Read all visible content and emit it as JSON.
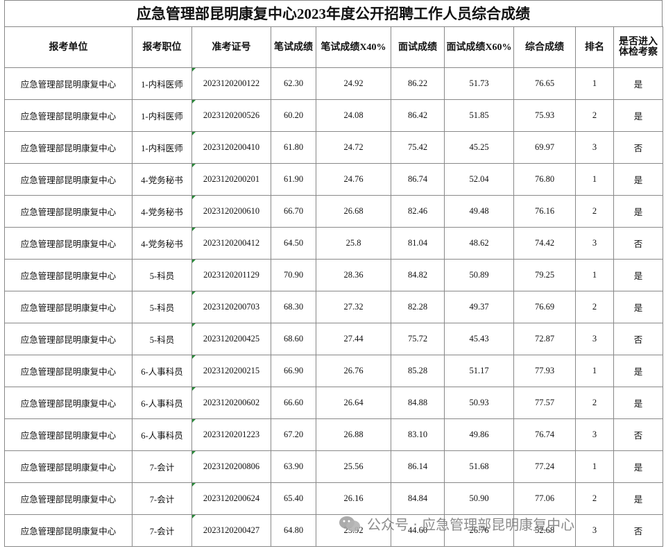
{
  "title": "应急管理部昆明康复中心2023年度公开招聘工作人员综合成绩",
  "table": {
    "headers": [
      "报考单位",
      "报考职位",
      "准考证号",
      "笔试成绩",
      "笔试成绩X40%",
      "面试成绩",
      "面试成绩X60%",
      "综合成绩",
      "排名",
      "是否进入体检考察"
    ],
    "rows": [
      [
        "应急管理部昆明康复中心",
        "1-内科医师",
        "2023120200122",
        "62.30",
        "24.92",
        "86.22",
        "51.73",
        "76.65",
        "1",
        "是"
      ],
      [
        "应急管理部昆明康复中心",
        "1-内科医师",
        "2023120200526",
        "60.20",
        "24.08",
        "86.42",
        "51.85",
        "75.93",
        "2",
        "是"
      ],
      [
        "应急管理部昆明康复中心",
        "1-内科医师",
        "2023120200410",
        "61.80",
        "24.72",
        "75.42",
        "45.25",
        "69.97",
        "3",
        "否"
      ],
      [
        "应急管理部昆明康复中心",
        "4-党务秘书",
        "2023120200201",
        "61.90",
        "24.76",
        "86.74",
        "52.04",
        "76.80",
        "1",
        "是"
      ],
      [
        "应急管理部昆明康复中心",
        "4-党务秘书",
        "2023120200610",
        "66.70",
        "26.68",
        "82.46",
        "49.48",
        "76.16",
        "2",
        "是"
      ],
      [
        "应急管理部昆明康复中心",
        "4-党务秘书",
        "2023120200412",
        "64.50",
        "25.8",
        "81.04",
        "48.62",
        "74.42",
        "3",
        "否"
      ],
      [
        "应急管理部昆明康复中心",
        "5-科员",
        "2023120201129",
        "70.90",
        "28.36",
        "84.82",
        "50.89",
        "79.25",
        "1",
        "是"
      ],
      [
        "应急管理部昆明康复中心",
        "5-科员",
        "2023120200703",
        "68.30",
        "27.32",
        "82.28",
        "49.37",
        "76.69",
        "2",
        "是"
      ],
      [
        "应急管理部昆明康复中心",
        "5-科员",
        "2023120200425",
        "68.60",
        "27.44",
        "75.72",
        "45.43",
        "72.87",
        "3",
        "否"
      ],
      [
        "应急管理部昆明康复中心",
        "6-人事科员",
        "2023120200215",
        "66.90",
        "26.76",
        "85.28",
        "51.17",
        "77.93",
        "1",
        "是"
      ],
      [
        "应急管理部昆明康复中心",
        "6-人事科员",
        "2023120200602",
        "66.60",
        "26.64",
        "84.88",
        "50.93",
        "77.57",
        "2",
        "是"
      ],
      [
        "应急管理部昆明康复中心",
        "6-人事科员",
        "2023120201223",
        "67.20",
        "26.88",
        "83.10",
        "49.86",
        "76.74",
        "3",
        "否"
      ],
      [
        "应急管理部昆明康复中心",
        "7-会计",
        "2023120200806",
        "63.90",
        "25.56",
        "86.14",
        "51.68",
        "77.24",
        "1",
        "是"
      ],
      [
        "应急管理部昆明康复中心",
        "7-会计",
        "2023120200624",
        "65.40",
        "26.16",
        "84.84",
        "50.90",
        "77.06",
        "2",
        "是"
      ],
      [
        "应急管理部昆明康复中心",
        "7-会计",
        "2023120200427",
        "64.80",
        "25.92",
        "44.60",
        "26.76",
        "52.68",
        "3",
        "否"
      ]
    ]
  },
  "watermark": "公众号 · 应急管理部昆明康复中心"
}
